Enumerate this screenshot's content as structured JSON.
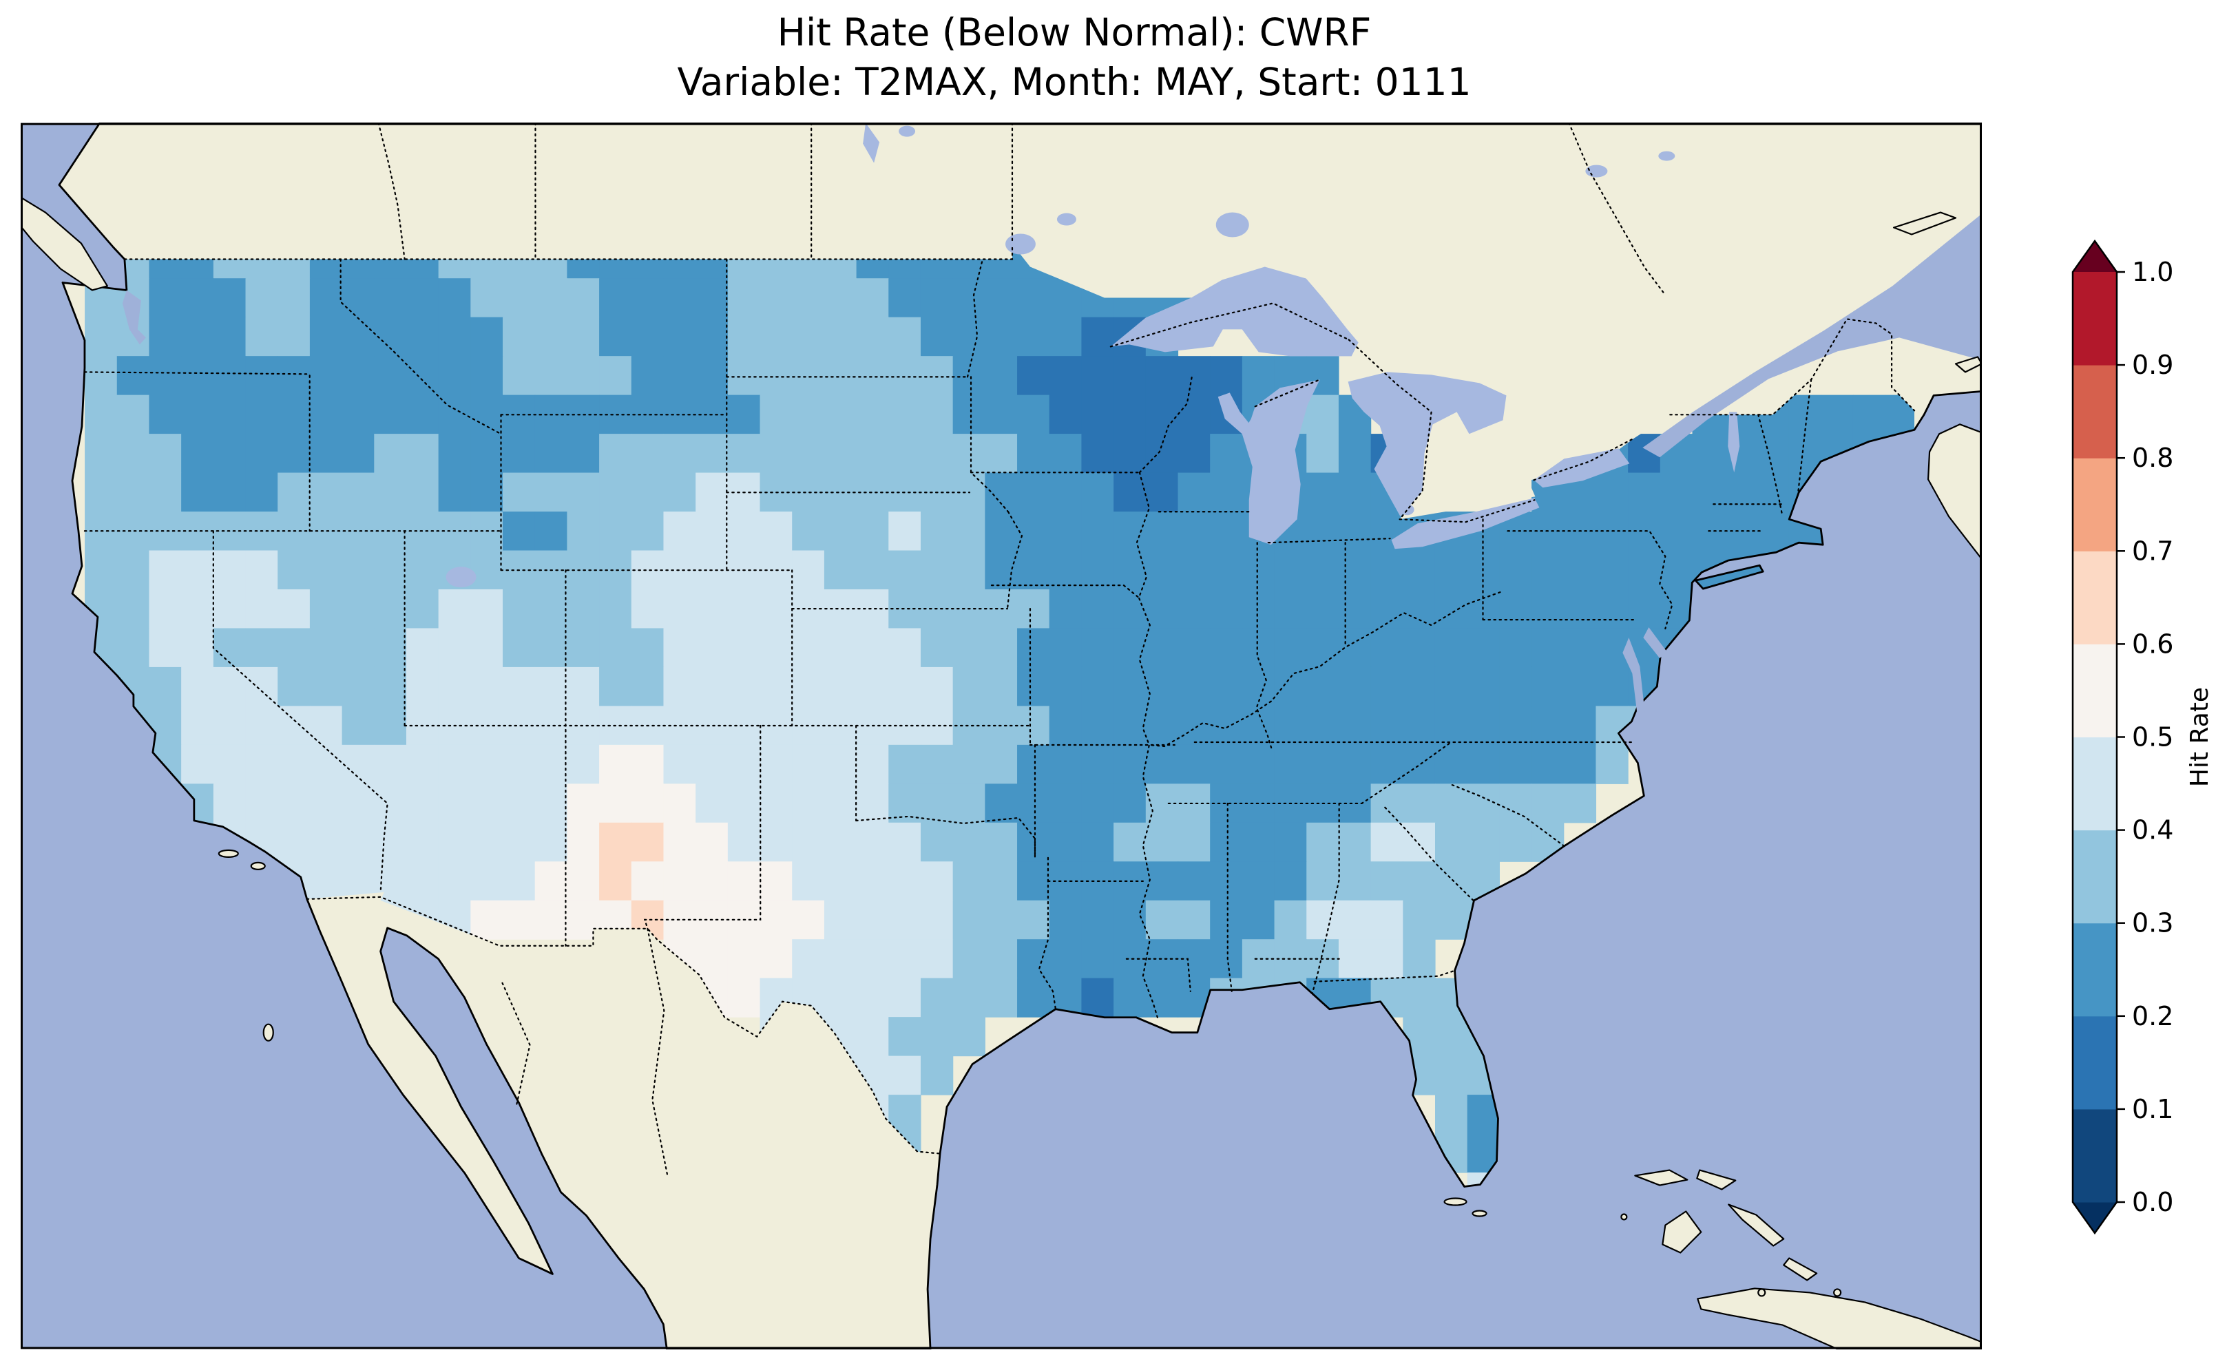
{
  "title": {
    "line1": "Hit Rate (Below Normal): CWRF",
    "line2": "Variable: T2MAX, Month: MAY, Start: 0111"
  },
  "map_style": {
    "ocean": "#9fb1d9",
    "land": "#f0eedb",
    "lake": "#a6b8e0",
    "water_channel": "#9fb1d9",
    "coastline": "#000000",
    "state_border_style": "dotted",
    "frame": "#000000",
    "background": "#ffffff"
  },
  "chart_data": {
    "type": "heatmap",
    "title": "Hit Rate (Below Normal): CWRF",
    "subtitle": "Variable: T2MAX, Month: MAY, Start: 0111",
    "statistic": "Hit Rate",
    "tercile_category": "Below Normal",
    "model": "CWRF",
    "variable": "T2MAX",
    "month": "MAY",
    "start": "0111",
    "region": "Contiguous United States with surrounding Canada, Mexico and oceans",
    "legend_position": "right",
    "colorbar": {
      "label": "Hit Rate",
      "orientation": "vertical",
      "range": [
        0.0,
        1.0
      ],
      "tick_step": 0.1,
      "tick_labels_bottom_to_top": [
        "0.0",
        "0.1",
        "0.2",
        "0.3",
        "0.4",
        "0.5",
        "0.6",
        "0.7",
        "0.8",
        "0.9",
        "1.0"
      ],
      "extend": "both",
      "segment_colors_bottom_to_top": [
        "#11477d",
        "#2b74b3",
        "#4695c5",
        "#92c5de",
        "#d1e5f0",
        "#f7f3ef",
        "#fcd9c4",
        "#f4a582",
        "#d6604d",
        "#b2182b"
      ],
      "under_arrow_color": "#053061",
      "over_arrow_color": "#67001f"
    },
    "bin_colors": {
      "2": "#2b74b3",
      "3": "#4695c5",
      "4": "#92c5de",
      "5": "#d1e5f0",
      "6": "#f7f3ef",
      "7": "#fcd9c4"
    },
    "bin_value_ranges": {
      "2": "0.1-0.2",
      "3": "0.2-0.3",
      "4": "0.3-0.4",
      "5": "0.4-0.5",
      "6": "0.5-0.6",
      "7": "0.6-0.7"
    },
    "grid": {
      "description": "Approximate hit-rate field over CONUS; each char is a value-bin code at 1-degree cells, segments are [startCol, codes]",
      "cols": 61,
      "rows": 31,
      "lon_west": -126,
      "lon_east": -65,
      "lat_north": 52.5,
      "lat_south": 21.5,
      "cell_bins": [
        [],
        [],
        [],
        [
          [
            2,
            "44334443333444433333444433333333333"
          ]
        ],
        [
          [
            2,
            "44333443333344443333444443333333333"
          ]
        ],
        [
          [
            2,
            "4433344333333444333344444433333223"
          ]
        ],
        [
          [
            2,
            "433333333333344443334444444332222222333"
          ]
        ],
        [
          [
            2,
            "4433333333333333333334444443332222223443"
          ],
          [
            52,
            "333333333"
          ]
        ],
        [
          [
            2,
            "444333333443333344444444444443322223334323"
          ],
          [
            47,
            "3332333333333"
          ]
        ],
        [
          [
            2,
            "444333444443344444455444444433332233333333"
          ],
          [
            47,
            "3333333333"
          ],
          [
            57,
            "44"
          ]
        ],
        [
          [
            2,
            "4444444444444334445555444544333333333333333333333333333"
          ]
        ],
        [
          [
            2,
            "44555544444444444555555444443333333333333333333333333"
          ]
        ],
        [
          [
            2,
            "44555554444554444555555554444433333333333333333333"
          ]
        ],
        [
          [
            2,
            "44554444445554444455555555444333333333333333333333"
          ]
        ],
        [
          [
            2,
            "4445554444555555445555555554433333333333333333333"
          ]
        ],
        [
          [
            2,
            "4445555544555555555555555554443333333333333333344"
          ]
        ],
        [
          [
            3,
            "44555555555555566555555544443333333333333333334"
          ]
        ],
        [
          [
            4,
            "445555555555566665555554443333344333334444444"
          ]
        ],
        [
          [
            5,
            "4555555555556776655555544433344433344554444"
          ]
        ],
        [
          [
            6,
            "5555555555667666665555544333333333444444"
          ]
        ],
        [
          [
            9,
            "5555566666766666555544433344334555444"
          ]
        ],
        [
          [
            20,
            "666655555443333333444554"
          ]
        ],
        [
          [
            21,
            "665555544433233344433444"
          ]
        ],
        [
          [
            23,
            "5555444"
          ],
          [
            43,
            "4444"
          ]
        ],
        [
          [
            24,
            "65554"
          ],
          [
            43,
            "4444"
          ]
        ],
        [
          [
            24,
            "6654"
          ],
          [
            44,
            "433"
          ]
        ],
        [
          [
            25,
            "544"
          ],
          [
            44,
            "433"
          ]
        ],
        [
          [
            45,
            "54"
          ]
        ],
        [],
        [],
        []
      ]
    }
  }
}
